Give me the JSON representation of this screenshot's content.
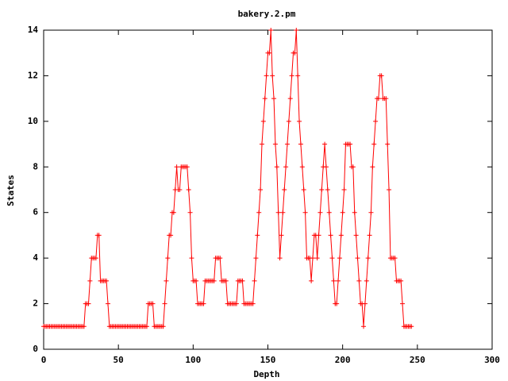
{
  "chart_data": {
    "type": "line",
    "title": "bakery.2.pm",
    "x_label": "Depth",
    "y_label": "States",
    "xlim": [
      0,
      300
    ],
    "xticks": [
      0,
      50,
      100,
      150,
      200,
      250,
      300
    ],
    "ylim": [
      0,
      14
    ],
    "yticks": [
      0,
      2,
      4,
      6,
      8,
      10,
      12,
      14
    ],
    "grid": false,
    "series": [
      {
        "color": "#ff0000",
        "x": [
          0,
          1,
          2,
          3,
          4,
          5,
          6,
          7,
          8,
          9,
          10,
          11,
          12,
          13,
          14,
          15,
          16,
          17,
          18,
          19,
          20,
          21,
          22,
          23,
          24,
          25,
          26,
          27,
          28,
          29,
          30,
          31,
          32,
          33,
          34,
          35,
          36,
          37,
          38,
          39,
          40,
          41,
          42,
          43,
          44,
          45,
          46,
          47,
          48,
          49,
          50,
          51,
          52,
          53,
          54,
          55,
          56,
          57,
          58,
          59,
          60,
          61,
          62,
          63,
          64,
          65,
          66,
          67,
          68,
          69,
          70,
          71,
          72,
          73,
          74,
          75,
          76,
          77,
          78,
          79,
          80,
          81,
          82,
          83,
          84,
          85,
          86,
          87,
          88,
          89,
          90,
          91,
          92,
          93,
          94,
          95,
          96,
          97,
          98,
          99,
          100,
          101,
          102,
          103,
          104,
          105,
          106,
          107,
          108,
          109,
          110,
          111,
          112,
          113,
          114,
          115,
          116,
          117,
          118,
          119,
          120,
          121,
          122,
          123,
          124,
          125,
          126,
          127,
          128,
          129,
          130,
          131,
          132,
          133,
          134,
          135,
          136,
          137,
          138,
          139,
          140,
          141,
          142,
          143,
          144,
          145,
          146,
          147,
          148,
          149,
          150,
          151,
          152,
          153,
          154,
          155,
          156,
          157,
          158,
          159,
          160,
          161,
          162,
          163,
          164,
          165,
          166,
          167,
          168,
          169,
          170,
          171,
          172,
          173,
          174,
          175,
          176,
          177,
          178,
          179,
          180,
          181,
          182,
          183,
          184,
          185,
          186,
          187,
          188,
          189,
          190,
          191,
          192,
          193,
          194,
          195,
          196,
          197,
          198,
          199,
          200,
          201,
          202,
          203,
          204,
          205,
          206,
          207,
          208,
          209,
          210,
          211,
          212,
          213,
          214,
          215,
          216,
          217,
          218,
          219,
          220,
          221,
          222,
          223,
          224,
          225,
          226,
          227,
          228,
          229,
          230,
          231,
          232,
          233,
          234,
          235,
          236,
          237,
          238,
          239,
          240,
          241,
          242,
          243,
          244,
          245,
          246
        ],
        "values": [
          1,
          1,
          1,
          1,
          1,
          1,
          1,
          1,
          1,
          1,
          1,
          1,
          1,
          1,
          1,
          1,
          1,
          1,
          1,
          1,
          1,
          1,
          1,
          1,
          1,
          1,
          1,
          1,
          2,
          2,
          2,
          3,
          4,
          4,
          4,
          4,
          5,
          5,
          3,
          3,
          3,
          3,
          3,
          2,
          1,
          1,
          1,
          1,
          1,
          1,
          1,
          1,
          1,
          1,
          1,
          1,
          1,
          1,
          1,
          1,
          1,
          1,
          1,
          1,
          1,
          1,
          1,
          1,
          1,
          1,
          2,
          2,
          2,
          2,
          1,
          1,
          1,
          1,
          1,
          1,
          1,
          2,
          3,
          4,
          5,
          5,
          6,
          6,
          7,
          8,
          7,
          7,
          8,
          8,
          8,
          8,
          8,
          7,
          6,
          4,
          3,
          3,
          3,
          2,
          2,
          2,
          2,
          2,
          3,
          3,
          3,
          3,
          3,
          3,
          3,
          4,
          4,
          4,
          4,
          3,
          3,
          3,
          3,
          2,
          2,
          2,
          2,
          2,
          2,
          2,
          3,
          3,
          3,
          3,
          2,
          2,
          2,
          2,
          2,
          2,
          2,
          3,
          4,
          5,
          6,
          7,
          9,
          10,
          11,
          12,
          13,
          13,
          14,
          12,
          11,
          9,
          8,
          6,
          4,
          5,
          6,
          7,
          8,
          9,
          10,
          11,
          12,
          13,
          13,
          14,
          12,
          10,
          9,
          8,
          7,
          6,
          4,
          4,
          4,
          3,
          4,
          5,
          5,
          4,
          5,
          6,
          7,
          8,
          9,
          8,
          7,
          6,
          5,
          4,
          3,
          2,
          2,
          3,
          4,
          5,
          6,
          7,
          9,
          9,
          9,
          9,
          8,
          8,
          6,
          5,
          4,
          3,
          2,
          2,
          1,
          2,
          3,
          4,
          5,
          6,
          8,
          9,
          10,
          11,
          11,
          12,
          12,
          11,
          11,
          11,
          9,
          7,
          4,
          4,
          4,
          4,
          3,
          3,
          3,
          3,
          2,
          1,
          1,
          1,
          1,
          1,
          1
        ]
      }
    ]
  }
}
